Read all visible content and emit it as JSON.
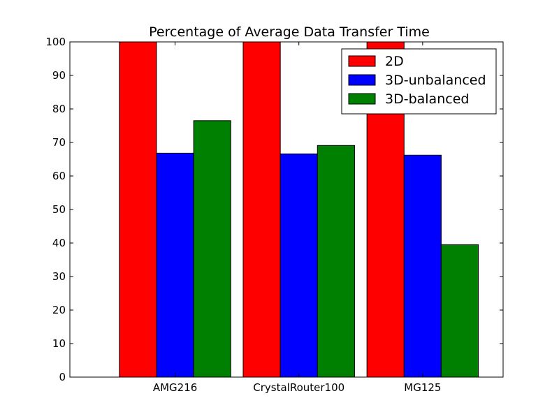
{
  "chart_data": {
    "type": "bar",
    "title": "Percentage of Average Data Transfer Time",
    "xlabel": "",
    "ylabel": "",
    "categories": [
      "AMG216",
      "CrystalRouter100",
      "MG125"
    ],
    "series": [
      {
        "name": "2D",
        "values": [
          100,
          100,
          100
        ],
        "color": "#ff0000"
      },
      {
        "name": "3D-unbalanced",
        "values": [
          66.8,
          66.6,
          66.2
        ],
        "color": "#0000ff"
      },
      {
        "name": "3D-balanced",
        "values": [
          76.5,
          69.1,
          39.5
        ],
        "color": "#008000"
      }
    ],
    "ylim": [
      0,
      100
    ],
    "yticks": [
      0,
      10,
      20,
      30,
      40,
      50,
      60,
      70,
      80,
      90,
      100
    ],
    "grid": false,
    "legend_position": "top-right"
  }
}
